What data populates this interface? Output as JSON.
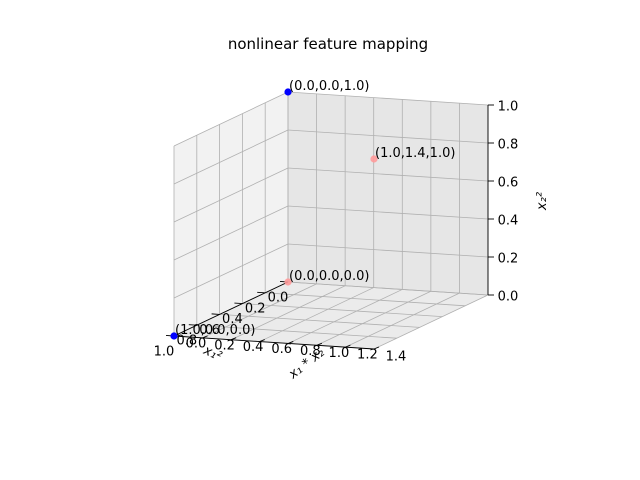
{
  "chart_data": {
    "type": "scatter",
    "projection": "3d",
    "title": "nonlinear feature mapping",
    "xlabel": "x₁²",
    "ylabel": "x₁ * x₂",
    "zlabel": "x₂²",
    "xlim": [
      0.0,
      1.0
    ],
    "ylim": [
      0.0,
      1.4
    ],
    "zlim": [
      0.0,
      1.0
    ],
    "xticks": [
      "0.0",
      "0.2",
      "0.4",
      "0.6",
      "0.8",
      "1.0"
    ],
    "yticks": [
      "0.0",
      "0.2",
      "0.4",
      "0.6",
      "0.8",
      "1.0",
      "1.2",
      "1.4"
    ],
    "zticks": [
      "0.0",
      "0.2",
      "0.4",
      "0.6",
      "0.8",
      "1.0"
    ],
    "grid": true,
    "points": [
      {
        "x": 0.0,
        "y": 0.0,
        "z": 0.0,
        "label": "(0.0,0.0,0.0)",
        "color": "#ff9a9a"
      },
      {
        "x": 1.0,
        "y": 0.0,
        "z": 0.0,
        "label": "(1.0,0.0,0.0)",
        "color": "#0000ff"
      },
      {
        "x": 0.0,
        "y": 0.0,
        "z": 1.0,
        "label": "(0.0,0.0,1.0)",
        "color": "#0000ff"
      },
      {
        "x": 1.0,
        "y": 1.4,
        "z": 1.0,
        "label": "(1.0,1.4,1.0)",
        "color": "#ff9a9a"
      }
    ]
  }
}
